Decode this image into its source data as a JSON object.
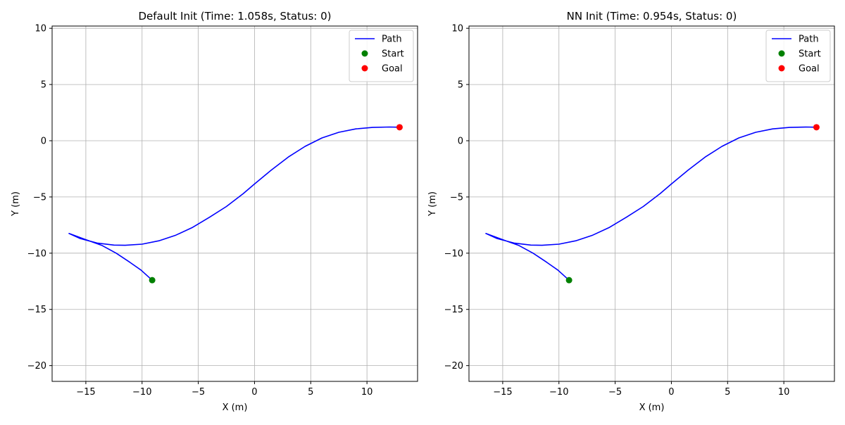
{
  "chart_data": [
    {
      "type": "line",
      "title": "Default Init (Time: 1.058s, Status: 0)",
      "xlabel": "X (m)",
      "ylabel": "Y (m)",
      "xlim": [
        -18.0,
        14.5
      ],
      "ylim": [
        -21.4,
        10.2
      ],
      "xticks": [
        -15,
        -10,
        -5,
        0,
        5,
        10
      ],
      "yticks": [
        -20,
        -15,
        -10,
        -5,
        0,
        5,
        10
      ],
      "xtick_labels": [
        "−15",
        "−10",
        "−5",
        "0",
        "5",
        "10"
      ],
      "ytick_labels": [
        "−20",
        "−15",
        "−10",
        "−5",
        "0",
        "5",
        "10"
      ],
      "grid": true,
      "legend_position": "top-right",
      "series": [
        {
          "name": "Path",
          "kind": "line",
          "color": "#0000ff",
          "x": [
            -9.1,
            -10.1,
            -11.1,
            -12.3,
            -13.6,
            -15.0,
            -16.5,
            -15.5,
            -14.0,
            -12.5,
            -11.5,
            -10.0,
            -8.5,
            -7.0,
            -5.5,
            -4.0,
            -2.5,
            -1.0,
            0.0,
            1.5,
            3.0,
            4.5,
            6.0,
            7.5,
            9.0,
            10.5,
            12.0,
            12.9
          ],
          "y": [
            -12.4,
            -11.5,
            -10.8,
            -10.0,
            -9.3,
            -8.8,
            -8.25,
            -8.7,
            -9.1,
            -9.28,
            -9.3,
            -9.2,
            -8.9,
            -8.4,
            -7.7,
            -6.8,
            -5.85,
            -4.7,
            -3.85,
            -2.6,
            -1.45,
            -0.5,
            0.25,
            0.75,
            1.05,
            1.18,
            1.22,
            1.2
          ]
        },
        {
          "name": "Start",
          "kind": "marker",
          "color": "#008000",
          "x": [
            -9.1
          ],
          "y": [
            -12.4
          ]
        },
        {
          "name": "Goal",
          "kind": "marker",
          "color": "#ff0000",
          "x": [
            12.9
          ],
          "y": [
            1.2
          ]
        }
      ]
    },
    {
      "type": "line",
      "title": "NN Init (Time: 0.954s, Status: 0)",
      "xlabel": "X (m)",
      "ylabel": "Y (m)",
      "xlim": [
        -18.0,
        14.5
      ],
      "ylim": [
        -21.4,
        10.2
      ],
      "xticks": [
        -15,
        -10,
        -5,
        0,
        5,
        10
      ],
      "yticks": [
        -20,
        -15,
        -10,
        -5,
        0,
        5,
        10
      ],
      "xtick_labels": [
        "−15",
        "−10",
        "−5",
        "0",
        "5",
        "10"
      ],
      "ytick_labels": [
        "−20",
        "−15",
        "−10",
        "−5",
        "0",
        "5",
        "10"
      ],
      "grid": true,
      "legend_position": "top-right",
      "series": [
        {
          "name": "Path",
          "kind": "line",
          "color": "#0000ff",
          "x": [
            -9.1,
            -10.1,
            -11.1,
            -12.3,
            -13.6,
            -15.0,
            -16.5,
            -15.5,
            -14.0,
            -12.5,
            -11.5,
            -10.0,
            -8.5,
            -7.0,
            -5.5,
            -4.0,
            -2.5,
            -1.0,
            0.0,
            1.5,
            3.0,
            4.5,
            6.0,
            7.5,
            9.0,
            10.5,
            12.0,
            12.9
          ],
          "y": [
            -12.4,
            -11.5,
            -10.8,
            -10.0,
            -9.3,
            -8.8,
            -8.25,
            -8.7,
            -9.1,
            -9.28,
            -9.3,
            -9.2,
            -8.9,
            -8.4,
            -7.7,
            -6.8,
            -5.85,
            -4.7,
            -3.85,
            -2.6,
            -1.45,
            -0.5,
            0.25,
            0.75,
            1.05,
            1.18,
            1.22,
            1.2
          ]
        },
        {
          "name": "Start",
          "kind": "marker",
          "color": "#008000",
          "x": [
            -9.1
          ],
          "y": [
            -12.4
          ]
        },
        {
          "name": "Goal",
          "kind": "marker",
          "color": "#ff0000",
          "x": [
            12.9
          ],
          "y": [
            1.2
          ]
        }
      ]
    }
  ]
}
